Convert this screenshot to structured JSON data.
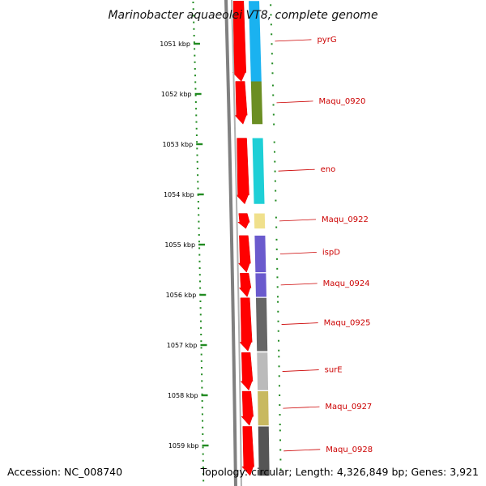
{
  "title": "Marinobacter aquaeolei VT8, complete genome",
  "accession": "Accession: NC_008740",
  "summary": "Topology: circular; Length: 4,326,849 bp; Genes: 3,921",
  "colors": {
    "tick": "#228b22",
    "backbone": "#808080",
    "gene_arrow": "#ff0000",
    "gene_label": "#cc0000"
  },
  "ticks": [
    {
      "kbp": 1051,
      "label": "1051 kbp"
    },
    {
      "kbp": 1052,
      "label": "1052 kbp"
    },
    {
      "kbp": 1053,
      "label": "1053 kbp"
    },
    {
      "kbp": 1054,
      "label": "1054 kbp"
    },
    {
      "kbp": 1055,
      "label": "1055 kbp"
    },
    {
      "kbp": 1056,
      "label": "1056 kbp"
    },
    {
      "kbp": 1057,
      "label": "1057 kbp"
    },
    {
      "kbp": 1058,
      "label": "1058 kbp"
    },
    {
      "kbp": 1059,
      "label": "1059 kbp"
    }
  ],
  "genes": [
    {
      "name": "pyrG",
      "start_kbp": 1050.15,
      "end_kbp": 1051.75,
      "cog_color": "#1ab2f0"
    },
    {
      "name": "Maqu_0920",
      "start_kbp": 1051.75,
      "end_kbp": 1052.6,
      "cog_color": "#6b8e23"
    },
    {
      "name": "eno",
      "start_kbp": 1052.88,
      "end_kbp": 1054.19,
      "cog_color": "#1ecfd6"
    },
    {
      "name": "Maqu_0922",
      "start_kbp": 1054.38,
      "end_kbp": 1054.68,
      "cog_color": "#f0e08c"
    },
    {
      "name": "ispD",
      "start_kbp": 1054.82,
      "end_kbp": 1055.55,
      "cog_color": "#6a5acd"
    },
    {
      "name": "Maqu_0924",
      "start_kbp": 1055.57,
      "end_kbp": 1056.04,
      "cog_color": "#6a5acd"
    },
    {
      "name": "Maqu_0925",
      "start_kbp": 1056.06,
      "end_kbp": 1057.12,
      "cog_color": "#666666"
    },
    {
      "name": "surE",
      "start_kbp": 1057.15,
      "end_kbp": 1057.9,
      "cog_color": "#bbbbbb"
    },
    {
      "name": "Maqu_0927",
      "start_kbp": 1057.92,
      "end_kbp": 1058.6,
      "cog_color": "#c8b960"
    },
    {
      "name": "Maqu_0928",
      "start_kbp": 1058.62,
      "end_kbp": 1059.6,
      "cog_color": "#555555"
    }
  ]
}
